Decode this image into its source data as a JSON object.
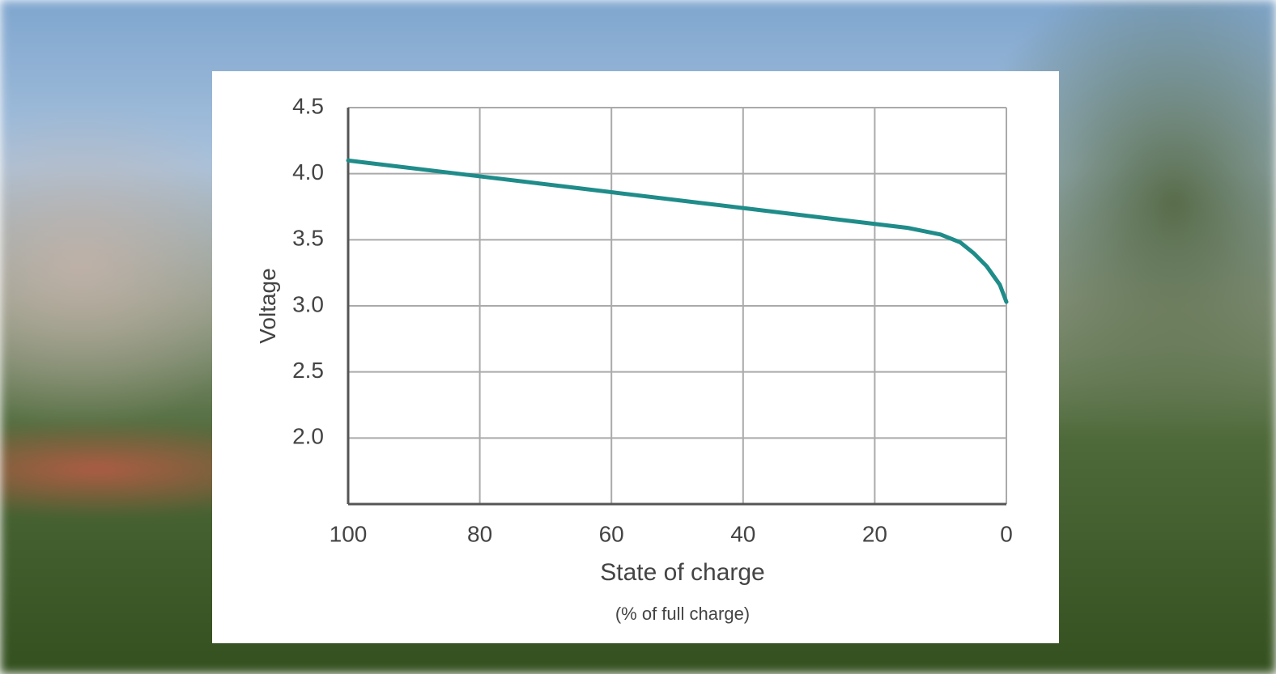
{
  "chart_data": {
    "type": "line",
    "x_label": "State of charge",
    "x_sublabel": "(% of full charge)",
    "y_label": "Voltage",
    "xlim": [
      100,
      0
    ],
    "xticks": [
      100,
      80,
      60,
      40,
      20,
      0
    ],
    "ylim": [
      1.5,
      4.5
    ],
    "yticks": [
      {
        "value": 2.0,
        "label": "2.0"
      },
      2.5,
      {
        "value": 3.0,
        "label": "3.0"
      },
      3.5,
      {
        "value": 4.0,
        "label": "4.0"
      },
      4.5
    ],
    "grid": true,
    "x": [
      100,
      80,
      60,
      40,
      20,
      15,
      10,
      7,
      5,
      3,
      1,
      0
    ],
    "series": [
      {
        "color": "#1f8c8a",
        "values": [
          4.1,
          3.98,
          3.86,
          3.74,
          3.62,
          3.59,
          3.54,
          3.48,
          3.4,
          3.3,
          3.16,
          3.03
        ]
      }
    ]
  }
}
